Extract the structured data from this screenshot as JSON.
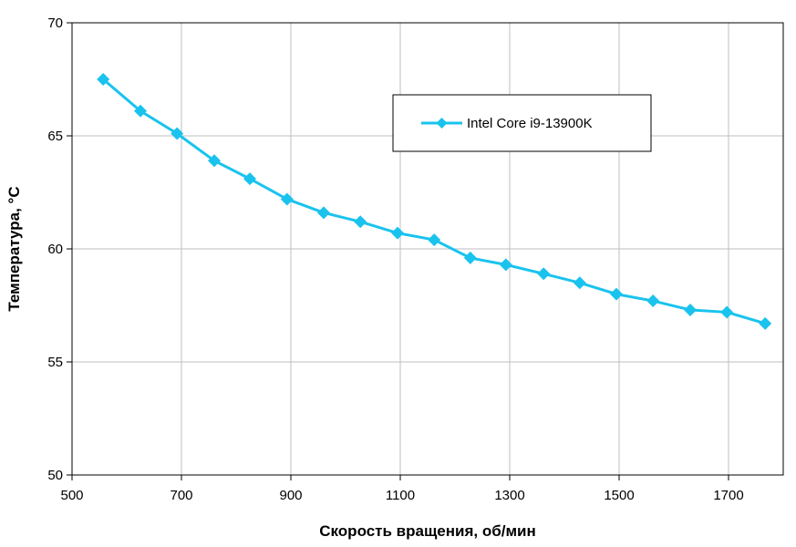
{
  "chart_data": {
    "type": "line",
    "title": "",
    "xlabel": "Скорость вращения, об/мин",
    "ylabel": "Температура, °C",
    "xlim": [
      500,
      1800
    ],
    "ylim": [
      50,
      70
    ],
    "x_ticks": [
      500,
      700,
      900,
      1100,
      1300,
      1500,
      1700
    ],
    "y_ticks": [
      50,
      55,
      60,
      65,
      70
    ],
    "x_tick_labels": [
      "500",
      "700",
      "900",
      "1100",
      "1300",
      "1500",
      "1700"
    ],
    "y_tick_labels": [
      "50",
      "55",
      "60",
      "65",
      "70"
    ],
    "grid": true,
    "legend_position": "top-right",
    "series": [
      {
        "name": "Intel Core i9-13900K",
        "color": "#19C3EE",
        "marker": "diamond",
        "x": [
          557,
          625,
          692,
          760,
          825,
          893,
          960,
          1027,
          1095,
          1162,
          1228,
          1293,
          1362,
          1428,
          1495,
          1562,
          1630,
          1697,
          1767
        ],
        "y": [
          67.5,
          66.1,
          65.1,
          63.9,
          63.1,
          62.2,
          61.6,
          61.2,
          60.7,
          60.4,
          59.6,
          59.3,
          58.9,
          58.5,
          58.0,
          57.7,
          57.3,
          57.2,
          56.7
        ]
      }
    ]
  }
}
